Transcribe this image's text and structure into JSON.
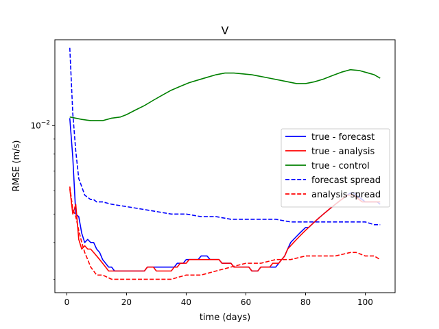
{
  "chart_data": {
    "type": "line",
    "title": "V",
    "xlabel": "time (days)",
    "ylabel": "RMSE (m/s)",
    "xlim": [
      -4,
      110
    ],
    "xticks": [
      0,
      20,
      40,
      60,
      80,
      100
    ],
    "yscale": "log",
    "ylim": [
      0.0027,
      0.0196
    ],
    "yticks": [
      {
        "value": 0.01,
        "base": "10",
        "exp": "−2"
      }
    ],
    "grid": false,
    "legend_position": "right",
    "series": [
      {
        "name": "true - forecast",
        "color": "#0000ff",
        "dash": "solid",
        "x": [
          1,
          2,
          3,
          4,
          5,
          6,
          7,
          8,
          9,
          10,
          11,
          12,
          13,
          14,
          15,
          16,
          17,
          18,
          19,
          20,
          21,
          22,
          23,
          24,
          25,
          26,
          27,
          28,
          29,
          30,
          31,
          32,
          33,
          34,
          35,
          36,
          37,
          38,
          39,
          40,
          41,
          42,
          43,
          44,
          45,
          46,
          47,
          48,
          49,
          50,
          51,
          52,
          53,
          54,
          55,
          56,
          57,
          58,
          59,
          60,
          61,
          62,
          63,
          64,
          65,
          66,
          67,
          68,
          69,
          70,
          71,
          72,
          73,
          74,
          75,
          76,
          77,
          78,
          79,
          80,
          81,
          82,
          83,
          84,
          85,
          86,
          87,
          88,
          89,
          90,
          91,
          92,
          93,
          94,
          95,
          96,
          97,
          98,
          99,
          100,
          101,
          102,
          103,
          104,
          105
        ],
        "y": [
          0.0106,
          0.0078,
          0.005,
          0.0049,
          0.0043,
          0.004,
          0.0041,
          0.004,
          0.004,
          0.0038,
          0.0037,
          0.0035,
          0.0034,
          0.0033,
          0.0033,
          0.0032,
          0.0032,
          0.0032,
          0.0032,
          0.0032,
          0.0032,
          0.0032,
          0.0032,
          0.0032,
          0.0032,
          0.0032,
          0.0033,
          0.0033,
          0.0033,
          0.0033,
          0.0033,
          0.0033,
          0.0033,
          0.0033,
          0.0033,
          0.0033,
          0.0034,
          0.0034,
          0.0034,
          0.0035,
          0.0035,
          0.0035,
          0.0035,
          0.0035,
          0.0036,
          0.0036,
          0.0036,
          0.0035,
          0.0035,
          0.0035,
          0.0035,
          0.0034,
          0.0034,
          0.0034,
          0.0034,
          0.0033,
          0.0033,
          0.0033,
          0.0033,
          0.0033,
          0.0033,
          0.0032,
          0.0032,
          0.0032,
          0.0033,
          0.0033,
          0.0033,
          0.0033,
          0.0033,
          0.0033,
          0.0034,
          0.0035,
          0.0036,
          0.0038,
          0.004,
          0.0041,
          0.0042,
          0.0043,
          0.0044,
          0.0045,
          0.0045,
          0.0046,
          0.0047,
          0.0048,
          0.0049,
          0.005,
          0.0051,
          0.0052,
          0.0053,
          0.0054,
          0.0055,
          0.0056,
          0.0057,
          0.0058,
          0.0059,
          0.0059,
          0.0058,
          0.0057,
          0.0056,
          0.0055,
          0.0055,
          0.0055,
          0.0055,
          0.0055,
          0.0054
        ]
      },
      {
        "name": "true - analysis",
        "color": "#ff0000",
        "dash": "solid",
        "x": [
          1,
          2,
          3,
          4,
          5,
          6,
          7,
          8,
          9,
          10,
          11,
          12,
          13,
          14,
          15,
          16,
          17,
          18,
          19,
          20,
          21,
          22,
          23,
          24,
          25,
          26,
          27,
          28,
          29,
          30,
          31,
          32,
          33,
          34,
          35,
          36,
          37,
          38,
          39,
          40,
          41,
          42,
          43,
          44,
          45,
          46,
          47,
          48,
          49,
          50,
          51,
          52,
          53,
          54,
          55,
          56,
          57,
          58,
          59,
          60,
          61,
          62,
          63,
          64,
          65,
          66,
          67,
          68,
          69,
          70,
          71,
          72,
          73,
          74,
          75,
          76,
          77,
          78,
          79,
          80,
          81,
          82,
          83,
          84,
          85,
          86,
          87,
          88,
          89,
          90,
          91,
          92,
          93,
          94,
          95,
          96,
          97,
          98,
          99,
          100,
          101,
          102,
          103,
          104,
          105
        ],
        "y": [
          0.0061,
          0.005,
          0.0054,
          0.0041,
          0.0038,
          0.0039,
          0.0038,
          0.0038,
          0.0037,
          0.0036,
          0.0035,
          0.0034,
          0.0033,
          0.0032,
          0.0032,
          0.0032,
          0.0032,
          0.0032,
          0.0032,
          0.0032,
          0.0032,
          0.0032,
          0.0032,
          0.0032,
          0.0032,
          0.0032,
          0.0033,
          0.0033,
          0.0033,
          0.0032,
          0.0032,
          0.0032,
          0.0032,
          0.0032,
          0.0032,
          0.0033,
          0.0033,
          0.0034,
          0.0034,
          0.0034,
          0.0035,
          0.0035,
          0.0035,
          0.0035,
          0.0035,
          0.0035,
          0.0035,
          0.0035,
          0.0035,
          0.0035,
          0.0035,
          0.0034,
          0.0034,
          0.0034,
          0.0034,
          0.0033,
          0.0033,
          0.0033,
          0.0033,
          0.0033,
          0.0033,
          0.0032,
          0.0032,
          0.0032,
          0.0033,
          0.0033,
          0.0033,
          0.0033,
          0.0034,
          0.0034,
          0.0034,
          0.0035,
          0.0036,
          0.0038,
          0.0039,
          0.004,
          0.0041,
          0.0042,
          0.0043,
          0.0044,
          0.0045,
          0.0046,
          0.0047,
          0.0048,
          0.0049,
          0.005,
          0.0051,
          0.0052,
          0.0053,
          0.0054,
          0.0055,
          0.0056,
          0.0057,
          0.0058,
          0.0058,
          0.0058,
          0.0057,
          0.0056,
          0.0055,
          0.0055,
          0.0055,
          0.0055,
          0.0055,
          0.0055,
          0.0055
        ]
      },
      {
        "name": "true - control",
        "color": "#008000",
        "dash": "solid",
        "x": [
          1,
          3,
          5,
          8,
          12,
          15,
          18,
          20,
          23,
          26,
          29,
          32,
          35,
          38,
          41,
          44,
          47,
          50,
          53,
          56,
          59,
          62,
          65,
          68,
          71,
          74,
          77,
          80,
          83,
          86,
          89,
          92,
          95,
          98,
          101,
          103,
          105
        ],
        "y": [
          0.0107,
          0.0106,
          0.0105,
          0.0104,
          0.0104,
          0.0106,
          0.0107,
          0.0109,
          0.0113,
          0.0117,
          0.0122,
          0.0127,
          0.0132,
          0.0136,
          0.014,
          0.0143,
          0.0146,
          0.0149,
          0.0151,
          0.0151,
          0.015,
          0.0149,
          0.0147,
          0.0145,
          0.0143,
          0.0141,
          0.0139,
          0.0139,
          0.0141,
          0.0144,
          0.0148,
          0.0152,
          0.0155,
          0.0154,
          0.0151,
          0.0149,
          0.0145
        ]
      },
      {
        "name": "forecast spread",
        "color": "#0000ff",
        "dash": "dashed",
        "x": [
          1,
          2,
          3,
          4,
          5,
          6,
          7,
          8,
          9,
          10,
          12,
          15,
          20,
          25,
          30,
          35,
          40,
          45,
          50,
          55,
          60,
          65,
          70,
          75,
          80,
          85,
          90,
          95,
          97,
          100,
          103,
          105
        ],
        "y": [
          0.0184,
          0.011,
          0.0082,
          0.0066,
          0.0062,
          0.0058,
          0.0057,
          0.0056,
          0.0056,
          0.0055,
          0.0055,
          0.0054,
          0.0053,
          0.0052,
          0.0051,
          0.005,
          0.005,
          0.0049,
          0.0049,
          0.0048,
          0.0048,
          0.0048,
          0.0048,
          0.0047,
          0.0047,
          0.0047,
          0.0047,
          0.0047,
          0.0047,
          0.0047,
          0.0046,
          0.0046
        ]
      },
      {
        "name": "analysis spread",
        "color": "#ff0000",
        "dash": "dashed",
        "x": [
          1,
          2,
          3,
          4,
          5,
          6,
          7,
          8,
          9,
          10,
          12,
          15,
          20,
          25,
          30,
          35,
          40,
          45,
          50,
          55,
          60,
          65,
          70,
          75,
          80,
          85,
          90,
          95,
          97,
          100,
          103,
          105
        ],
        "y": [
          0.0062,
          0.0052,
          0.0049,
          0.0044,
          0.004,
          0.0037,
          0.0035,
          0.0033,
          0.0032,
          0.0031,
          0.0031,
          0.003,
          0.003,
          0.003,
          0.003,
          0.003,
          0.0031,
          0.0031,
          0.0032,
          0.0033,
          0.0034,
          0.0034,
          0.0035,
          0.0035,
          0.0036,
          0.0036,
          0.0036,
          0.0037,
          0.0037,
          0.0036,
          0.0036,
          0.0035
        ]
      }
    ]
  }
}
